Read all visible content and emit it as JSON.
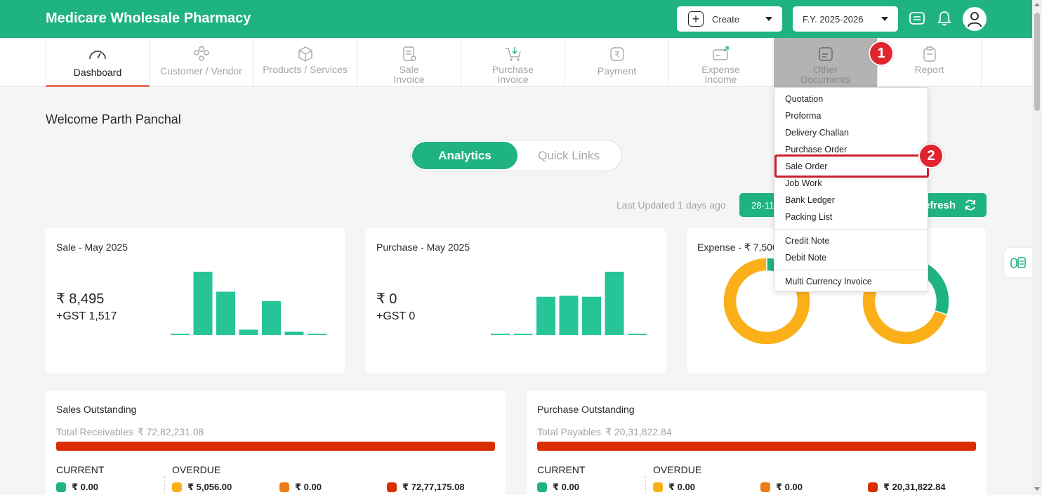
{
  "header": {
    "title": "Medicare Wholesale Pharmacy",
    "create_label": "Create",
    "fy_label": "F.Y. 2025-2026"
  },
  "nav": {
    "tabs": [
      {
        "label": "Dashboard",
        "icon": "gauge-icon"
      },
      {
        "label": "Customer / Vendor",
        "icon": "users-icon"
      },
      {
        "label": "Products / Services",
        "icon": "box-icon"
      },
      {
        "label": "Sale\nInvoice",
        "icon": "invoice-icon"
      },
      {
        "label": "Purchase\nInvoice",
        "icon": "cart-icon"
      },
      {
        "label": "Payment",
        "icon": "rupee-icon"
      },
      {
        "label": "Expense\nIncome",
        "icon": "wallet-icon"
      },
      {
        "label": "Other\nDocuments",
        "icon": "document-icon"
      },
      {
        "label": "Report",
        "icon": "clipboard-icon"
      }
    ]
  },
  "badges": {
    "step1": "1",
    "step2": "2"
  },
  "welcome": "Welcome Parth Panchal",
  "toggle": {
    "analytics": "Analytics",
    "quick_links": "Quick Links"
  },
  "updated": {
    "last_updated": "Last Updated 1 days ago",
    "date": "28-11",
    "refresh": "Refresh"
  },
  "cards": {
    "sale": {
      "title": "Sale - May 2025",
      "amount": "₹ 8,495",
      "gst": "+GST 1,517"
    },
    "purchase": {
      "title": "Purchase - May 2025",
      "amount": "₹ 0",
      "gst": "+GST 0"
    },
    "expense": {
      "title": "Expense - ₹ 7,500"
    }
  },
  "chart_data": [
    {
      "type": "bar",
      "title": "Sale - May 2025",
      "values": [
        0.5,
        30,
        20.5,
        2.5,
        16,
        1.5,
        0.5
      ]
    },
    {
      "type": "bar",
      "title": "Purchase - May 2025",
      "values": [
        0.5,
        0.5,
        17.5,
        18,
        17.5,
        29,
        0.5
      ]
    },
    {
      "type": "pie",
      "title": "Expense",
      "values": [
        0.88,
        0.12
      ]
    },
    {
      "type": "pie",
      "values": [
        0.7,
        0.3
      ]
    }
  ],
  "colors": {
    "brand": "#1fb384",
    "expense_gold": "#fbb019",
    "overdue_orange": "#f07a14",
    "overdue_red": "#d92e00"
  },
  "sales_outstanding": {
    "title": "Sales Outstanding",
    "total_label": "Total Receivables",
    "total_value": "₹ 72,82,231.08",
    "current_label": "CURRENT",
    "overdue_label": "OVERDUE",
    "current": "₹ 0.00",
    "overdue": [
      "₹ 5,056.00",
      "₹ 0.00",
      "₹ 72,77,175.08"
    ]
  },
  "purchase_outstanding": {
    "title": "Purchase Outstanding",
    "total_label": "Total Payables",
    "total_value": "₹ 20,31,822.84",
    "current_label": "CURRENT",
    "overdue_label": "OVERDUE",
    "current": "₹ 0.00",
    "overdue": [
      "₹ 0.00",
      "₹ 0.00",
      "₹ 20,31,822.84"
    ]
  },
  "dropdown": {
    "items": [
      "Quotation",
      "Proforma",
      "Delivery Challan",
      "Purchase Order",
      "Sale Order",
      "Job Work",
      "Bank Ledger",
      "Packing List",
      "Credit Note",
      "Debit Note",
      "Multi Currency Invoice"
    ]
  }
}
